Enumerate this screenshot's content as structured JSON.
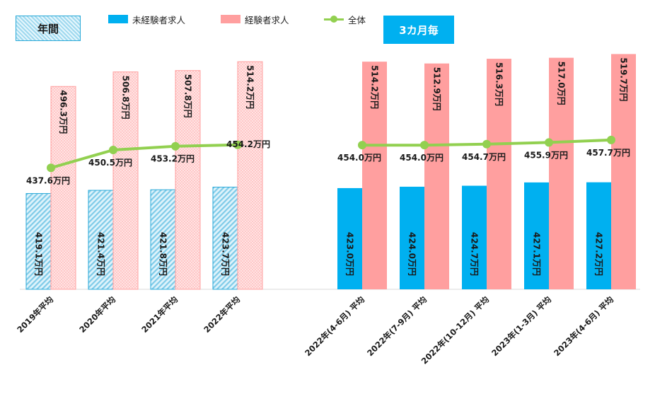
{
  "tags": {
    "annual": "年間",
    "quarterly": "3カ月毎"
  },
  "legend": [
    {
      "label": "未経験者求人",
      "color": "#00b0f0",
      "kind": "bar"
    },
    {
      "label": "経験者求人",
      "color": "#ff9f9f",
      "kind": "bar"
    },
    {
      "label": "全体",
      "color": "#92d050",
      "kind": "line"
    }
  ],
  "chart_data": {
    "type": "bar",
    "unit_suffix": "万円",
    "categories": [
      "2019年平均",
      "2020年平均",
      "2021年平均",
      "2022年平均",
      "2022年(4-6月) 平均",
      "2022年(7-9月) 平均",
      "2022年(10-12月) 平均",
      "2023年(1-3月) 平均",
      "2023年(4-6月) 平均"
    ],
    "series": [
      {
        "name": "未経験者求人",
        "type": "bar",
        "color": "#00b0f0",
        "values": [
          419.1,
          421.4,
          421.8,
          423.7,
          423.0,
          424.0,
          424.7,
          427.1,
          427.2
        ],
        "labels": [
          "419.1万円",
          "421.4万円",
          "421.8万円",
          "423.7万円",
          "423.0万円",
          "424.0万円",
          "424.7万円",
          "427.1万円",
          "427.2万円"
        ]
      },
      {
        "name": "経験者求人",
        "type": "bar",
        "color": "#ff9f9f",
        "values": [
          496.3,
          506.8,
          507.8,
          514.2,
          514.2,
          512.9,
          516.3,
          517.0,
          519.7
        ],
        "labels": [
          "496.3万円",
          "506.8万円",
          "507.8万円",
          "514.2万円",
          "514.2万円",
          "512.9万円",
          "516.3万円",
          "517.0万円",
          "519.7万円"
        ]
      },
      {
        "name": "全体",
        "type": "line",
        "color": "#92d050",
        "values": [
          437.6,
          450.5,
          453.2,
          454.2,
          454.0,
          454.0,
          454.7,
          455.9,
          457.7
        ],
        "labels": [
          "437.6万円",
          "450.5万円",
          "453.2万円",
          "454.2万円",
          "454.0万円",
          "454.0万円",
          "454.7万円",
          "455.9万円",
          "457.7万円"
        ]
      }
    ],
    "annual_count": 4,
    "ylim": [
      350,
      525
    ]
  }
}
